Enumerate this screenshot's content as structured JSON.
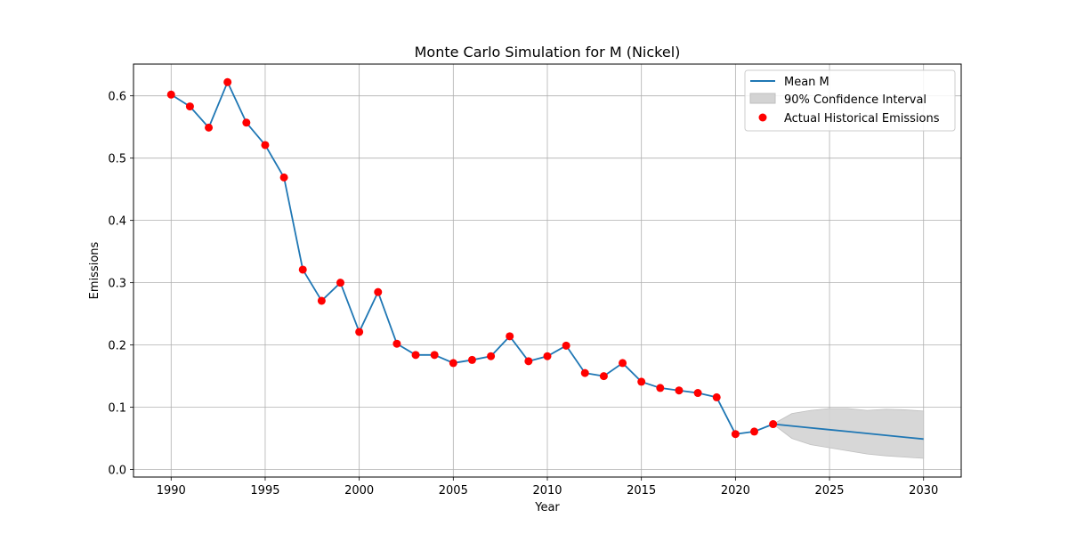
{
  "chart_data": {
    "type": "line",
    "title": "Monte Carlo Simulation for M (Nickel)",
    "xlabel": "Year",
    "ylabel": "Emissions",
    "xlim": [
      1988,
      2032
    ],
    "ylim": [
      -0.012,
      0.651
    ],
    "xticks": [
      1990,
      1995,
      2000,
      2005,
      2010,
      2015,
      2020,
      2025,
      2030
    ],
    "yticks": [
      0.0,
      0.1,
      0.2,
      0.3,
      0.4,
      0.5,
      0.6
    ],
    "ytick_labels": [
      "0.0",
      "0.1",
      "0.2",
      "0.3",
      "0.4",
      "0.5",
      "0.6"
    ],
    "grid": true,
    "legend_position": "top-right",
    "legend": {
      "mean": "Mean M",
      "ci": "90% Confidence Interval",
      "actual": "Actual Historical Emissions"
    },
    "colors": {
      "mean": "#1f77b4",
      "ci_fill": "#d3d3d3",
      "ci_edge": "#bfbfbf",
      "actual": "#ff0000",
      "grid": "#b0b0b0"
    },
    "series": [
      {
        "name": "Mean M",
        "x": [
          1990,
          1991,
          1992,
          1993,
          1994,
          1995,
          1996,
          1997,
          1998,
          1999,
          2000,
          2001,
          2002,
          2003,
          2004,
          2005,
          2006,
          2007,
          2008,
          2009,
          2010,
          2011,
          2012,
          2013,
          2014,
          2015,
          2016,
          2017,
          2018,
          2019,
          2020,
          2021,
          2022,
          2023,
          2024,
          2025,
          2026,
          2027,
          2028,
          2029,
          2030
        ],
        "y": [
          0.602,
          0.583,
          0.549,
          0.622,
          0.557,
          0.521,
          0.469,
          0.321,
          0.271,
          0.3,
          0.221,
          0.285,
          0.202,
          0.184,
          0.184,
          0.171,
          0.176,
          0.182,
          0.214,
          0.174,
          0.182,
          0.199,
          0.155,
          0.15,
          0.171,
          0.141,
          0.131,
          0.127,
          0.123,
          0.116,
          0.057,
          0.061,
          0.073,
          0.07,
          0.067,
          0.064,
          0.061,
          0.058,
          0.055,
          0.052,
          0.049
        ]
      },
      {
        "name": "90% Confidence Interval",
        "x": [
          2022,
          2023,
          2024,
          2025,
          2026,
          2027,
          2028,
          2029,
          2030
        ],
        "lower": [
          0.073,
          0.05,
          0.04,
          0.035,
          0.03,
          0.025,
          0.022,
          0.02,
          0.018
        ],
        "upper": [
          0.073,
          0.09,
          0.095,
          0.098,
          0.098,
          0.095,
          0.097,
          0.096,
          0.094
        ]
      },
      {
        "name": "Actual Historical Emissions",
        "x": [
          1990,
          1991,
          1992,
          1993,
          1994,
          1995,
          1996,
          1997,
          1998,
          1999,
          2000,
          2001,
          2002,
          2003,
          2004,
          2005,
          2006,
          2007,
          2008,
          2009,
          2010,
          2011,
          2012,
          2013,
          2014,
          2015,
          2016,
          2017,
          2018,
          2019,
          2020,
          2021,
          2022
        ],
        "y": [
          0.602,
          0.583,
          0.549,
          0.622,
          0.557,
          0.521,
          0.469,
          0.321,
          0.271,
          0.3,
          0.221,
          0.285,
          0.202,
          0.184,
          0.184,
          0.171,
          0.176,
          0.182,
          0.214,
          0.174,
          0.182,
          0.199,
          0.155,
          0.15,
          0.171,
          0.141,
          0.131,
          0.127,
          0.123,
          0.116,
          0.057,
          0.061,
          0.073
        ]
      }
    ]
  }
}
